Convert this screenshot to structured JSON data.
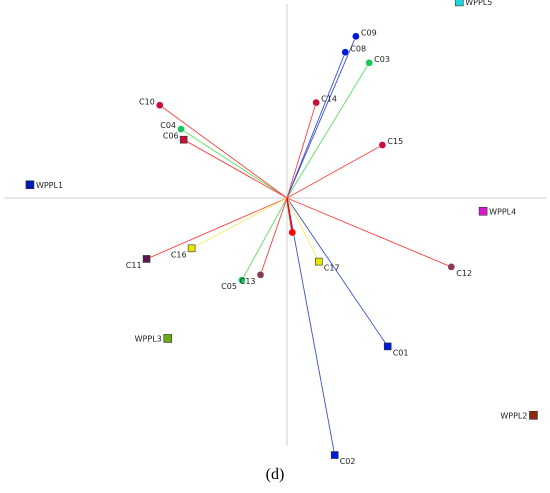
{
  "panel_label": "(d)",
  "chart_data": {
    "type": "scatter",
    "title": "",
    "xlabel": "",
    "ylabel": "",
    "xlim": [
      -1,
      1
    ],
    "ylim": [
      -1,
      1
    ],
    "grid": false,
    "origin_axes": true,
    "loading_vectors": [
      {
        "label": "C01",
        "x": 0.38,
        "y": -0.56,
        "color": "#0018d8",
        "marker": "square",
        "line_color": "#3a4fd8"
      },
      {
        "label": "C02",
        "x": 0.18,
        "y": -0.97,
        "color": "#0018d8",
        "marker": "square",
        "line_color": "#3a4fd8"
      },
      {
        "label": "C03",
        "x": 0.31,
        "y": 0.51,
        "color": "#18c85a",
        "marker": "circle",
        "line_color": "#5ee05e"
      },
      {
        "label": "C04",
        "x": -0.4,
        "y": 0.26,
        "color": "#18c85a",
        "marker": "circle",
        "line_color": "#5ee05e"
      },
      {
        "label": "C05",
        "x": -0.17,
        "y": -0.31,
        "color": "#18c85a",
        "marker": "circle",
        "line_color": "#5ee05e"
      },
      {
        "label": "C06",
        "x": -0.39,
        "y": 0.22,
        "color": "#c8103c",
        "marker": "square",
        "line_color": "#ff4040"
      },
      {
        "label": "C08",
        "x": 0.22,
        "y": 0.55,
        "color": "#0018d8",
        "marker": "circle",
        "line_color": "#3a4fd8"
      },
      {
        "label": "C09",
        "x": 0.26,
        "y": 0.61,
        "color": "#0018d8",
        "marker": "circle",
        "line_color": "#3a4fd8"
      },
      {
        "label": "C10",
        "x": -0.48,
        "y": 0.35,
        "color": "#c8103c",
        "marker": "circle",
        "line_color": "#ff4040"
      },
      {
        "label": "C11",
        "x": -0.53,
        "y": -0.23,
        "color": "#5a1a50",
        "marker": "square",
        "line_color": "#ff4040"
      },
      {
        "label": "C12",
        "x": 0.62,
        "y": -0.26,
        "color": "#8a3a50",
        "marker": "circle",
        "line_color": "#ff4040"
      },
      {
        "label": "C13",
        "x": -0.1,
        "y": -0.29,
        "color": "#8a3a50",
        "marker": "circle",
        "line_color": "#ff4040"
      },
      {
        "label": "C14",
        "x": 0.11,
        "y": 0.36,
        "color": "#c8103c",
        "marker": "circle",
        "line_color": "#ff4040"
      },
      {
        "label": "C15",
        "x": 0.36,
        "y": 0.2,
        "color": "#c8103c",
        "marker": "circle",
        "line_color": "#ff4040"
      },
      {
        "label": "C16",
        "x": -0.36,
        "y": -0.19,
        "color": "#e6e600",
        "marker": "square",
        "line_color": "#f0f060"
      },
      {
        "label": "C17",
        "x": 0.12,
        "y": -0.24,
        "color": "#e6e600",
        "marker": "square",
        "line_color": "#f0f060"
      }
    ],
    "origin_point": {
      "x": 0.02,
      "y": -0.13,
      "color": "#ff0000"
    },
    "score_points": [
      {
        "label": "WPPL1",
        "x": -0.97,
        "y": 0.05,
        "color": "#0018b8"
      },
      {
        "label": "WPPL2",
        "x": 0.93,
        "y": -0.82,
        "color": "#8a2a10"
      },
      {
        "label": "WPPL3",
        "x": -0.45,
        "y": -0.53,
        "color": "#6aa81a"
      },
      {
        "label": "WPPL4",
        "x": 0.74,
        "y": -0.05,
        "color": "#d818c8"
      },
      {
        "label": "WPPL5",
        "x": 0.65,
        "y": 0.74,
        "color": "#18d8e0"
      }
    ]
  }
}
